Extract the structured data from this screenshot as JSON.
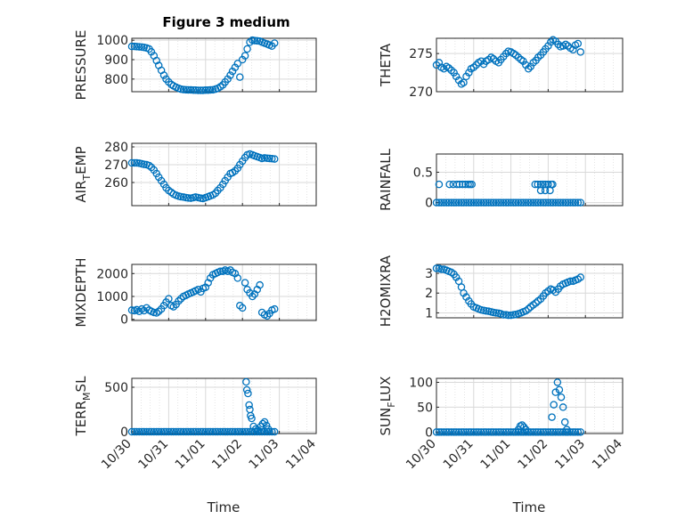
{
  "figure": {
    "title": "Figure 3 medium",
    "xlabel": "Time"
  },
  "colors": {
    "marker": "#0072BD",
    "axis": "#262626",
    "grid": "#d9d9d9"
  },
  "time_ticks": [
    "10/30",
    "10/31",
    "11/01",
    "11/02",
    "11/03",
    "11/04"
  ],
  "chart_data": [
    {
      "type": "scatter",
      "ylabel": "PRESSURE",
      "ylim": [
        735,
        1010
      ],
      "yticks": [
        "800",
        "900",
        "1000"
      ],
      "ytick_values": [
        800,
        900,
        1000
      ],
      "x": [
        0.0,
        0.07,
        0.13,
        0.2,
        0.27,
        0.33,
        0.4,
        0.47,
        0.53,
        0.6,
        0.67,
        0.73,
        0.8,
        0.87,
        0.93,
        1.0,
        1.07,
        1.13,
        1.2,
        1.27,
        1.33,
        1.4,
        1.47,
        1.53,
        1.6,
        1.67,
        1.73,
        1.8,
        1.87,
        1.93,
        2.0,
        2.07,
        2.13,
        2.2,
        2.27,
        2.33,
        2.4,
        2.47,
        2.53,
        2.6,
        2.67,
        2.73,
        2.8,
        2.87,
        2.93,
        3.0,
        3.07,
        3.13,
        3.2,
        3.27,
        3.33,
        3.4,
        3.47,
        3.53,
        3.6,
        3.67,
        3.73,
        3.8,
        3.87
      ],
      "y": [
        968,
        968,
        967,
        966,
        965,
        963,
        960,
        955,
        940,
        920,
        895,
        870,
        845,
        820,
        800,
        785,
        772,
        765,
        758,
        752,
        748,
        746,
        745,
        744,
        744,
        743,
        743,
        742,
        742,
        742,
        743,
        743,
        744,
        745,
        748,
        752,
        760,
        770,
        785,
        800,
        820,
        840,
        860,
        880,
        810,
        900,
        920,
        955,
        990,
        1000,
        998,
        997,
        995,
        990,
        985,
        980,
        975,
        970,
        985
      ]
    },
    {
      "type": "scatter",
      "ylabel": "THETA",
      "ylim": [
        270,
        277
      ],
      "yticks": [
        "270",
        "275"
      ],
      "ytick_values": [
        270,
        275
      ],
      "x": [
        0.0,
        0.07,
        0.13,
        0.2,
        0.27,
        0.33,
        0.4,
        0.47,
        0.53,
        0.6,
        0.67,
        0.73,
        0.8,
        0.87,
        0.93,
        1.0,
        1.07,
        1.13,
        1.2,
        1.27,
        1.33,
        1.4,
        1.47,
        1.53,
        1.6,
        1.67,
        1.73,
        1.8,
        1.87,
        1.93,
        2.0,
        2.07,
        2.13,
        2.2,
        2.27,
        2.33,
        2.4,
        2.47,
        2.53,
        2.6,
        2.67,
        2.73,
        2.8,
        2.87,
        2.93,
        3.0,
        3.07,
        3.13,
        3.2,
        3.27,
        3.33,
        3.4,
        3.47,
        3.53,
        3.6,
        3.67,
        3.73,
        3.8,
        3.87
      ],
      "y": [
        273.5,
        273.8,
        273.2,
        273.0,
        273.3,
        273.1,
        272.8,
        272.5,
        272.0,
        271.5,
        271.0,
        271.2,
        272.0,
        272.5,
        273.0,
        273.2,
        273.5,
        273.8,
        274.0,
        273.6,
        274.0,
        274.2,
        274.5,
        274.3,
        274.0,
        273.8,
        274.2,
        274.6,
        275.0,
        275.3,
        275.2,
        275.0,
        274.8,
        274.5,
        274.2,
        274.0,
        273.5,
        273.0,
        273.3,
        273.8,
        274.1,
        274.5,
        274.8,
        275.2,
        275.6,
        276.0,
        276.5,
        276.8,
        276.6,
        276.2,
        275.9,
        276.0,
        276.2,
        276.0,
        275.7,
        275.5,
        276.1,
        276.3,
        275.2
      ]
    },
    {
      "type": "scatter",
      "ylabel": "AIR_TEMP",
      "ylabel_main": "AIR",
      "ylabel_sub": "T",
      "ylabel_rest": "EMP",
      "ylim": [
        247,
        282
      ],
      "yticks": [
        "260",
        "270",
        "280"
      ],
      "ytick_values": [
        260,
        270,
        280
      ],
      "x": [
        0.0,
        0.07,
        0.13,
        0.2,
        0.27,
        0.33,
        0.4,
        0.47,
        0.53,
        0.6,
        0.67,
        0.73,
        0.8,
        0.87,
        0.93,
        1.0,
        1.07,
        1.13,
        1.2,
        1.27,
        1.33,
        1.4,
        1.47,
        1.53,
        1.6,
        1.67,
        1.73,
        1.8,
        1.87,
        1.93,
        2.0,
        2.07,
        2.13,
        2.2,
        2.27,
        2.33,
        2.4,
        2.47,
        2.53,
        2.6,
        2.67,
        2.73,
        2.8,
        2.87,
        2.93,
        3.0,
        3.07,
        3.13,
        3.2,
        3.27,
        3.33,
        3.4,
        3.47,
        3.53,
        3.6,
        3.67,
        3.73,
        3.8,
        3.87
      ],
      "y": [
        271,
        271,
        271,
        270.8,
        270.5,
        270.2,
        270,
        269.5,
        268.5,
        267,
        265,
        263,
        261,
        259,
        257,
        255.5,
        254.5,
        253.5,
        252.8,
        252.3,
        252,
        251.8,
        251.5,
        251.3,
        251.2,
        251.5,
        251.8,
        251.5,
        251.2,
        251,
        251.5,
        252,
        252.5,
        253,
        254,
        255.5,
        257,
        259,
        261,
        263,
        265,
        265.5,
        266.5,
        268,
        270,
        272,
        274,
        275.5,
        276,
        275.5,
        275,
        274.5,
        274,
        273.5,
        273.8,
        273.6,
        273.5,
        273.4,
        273.2
      ]
    },
    {
      "type": "scatter",
      "ylabel": "RAINFALL",
      "ylim": [
        -0.05,
        0.8
      ],
      "yticks": [
        "0",
        "0.5"
      ],
      "ytick_values": [
        0,
        0.5
      ],
      "x": [
        0.0,
        0.07,
        0.13,
        0.2,
        0.27,
        0.33,
        0.4,
        0.47,
        0.53,
        0.6,
        0.67,
        0.73,
        0.8,
        0.87,
        0.93,
        1.0,
        1.07,
        1.13,
        1.2,
        1.27,
        1.33,
        1.4,
        1.47,
        1.53,
        1.6,
        1.67,
        1.73,
        1.8,
        1.87,
        1.93,
        2.0,
        2.07,
        2.13,
        2.2,
        2.27,
        2.33,
        2.4,
        2.47,
        2.53,
        2.6,
        2.67,
        2.73,
        2.8,
        2.87,
        2.93,
        3.0,
        3.07,
        3.13,
        3.2,
        3.27,
        3.33,
        3.4,
        3.47,
        3.53,
        3.6,
        3.67,
        3.73,
        3.8,
        3.87,
        0.07,
        0.35,
        0.45,
        0.55,
        0.62,
        0.7,
        0.78,
        0.85,
        0.9,
        0.95,
        2.65,
        2.72,
        2.8,
        2.86,
        2.92,
        3.0,
        3.08,
        2.8,
        2.92,
        3.05,
        3.12
      ],
      "y": [
        0,
        0,
        0,
        0,
        0,
        0,
        0,
        0,
        0,
        0,
        0,
        0,
        0,
        0,
        0,
        0,
        0,
        0,
        0,
        0,
        0,
        0,
        0,
        0,
        0,
        0,
        0,
        0,
        0,
        0,
        0,
        0,
        0,
        0,
        0,
        0,
        0,
        0,
        0,
        0,
        0,
        0,
        0,
        0,
        0,
        0,
        0,
        0,
        0,
        0,
        0,
        0,
        0,
        0,
        0,
        0,
        0,
        0,
        0,
        0.3,
        0.3,
        0.3,
        0.3,
        0.3,
        0.3,
        0.3,
        0.3,
        0.3,
        0.3,
        0.3,
        0.3,
        0.3,
        0.3,
        0.3,
        0.3,
        0.3,
        0.2,
        0.2,
        0.2,
        0.3
      ]
    },
    {
      "type": "scatter",
      "ylabel": "MIXDEPTH",
      "ylim": [
        -50,
        2400
      ],
      "yticks": [
        "0",
        "1000",
        "2000"
      ],
      "ytick_values": [
        0,
        1000,
        2000
      ],
      "x": [
        0.0,
        0.07,
        0.13,
        0.2,
        0.27,
        0.33,
        0.4,
        0.47,
        0.53,
        0.6,
        0.67,
        0.73,
        0.8,
        0.87,
        0.93,
        1.0,
        1.07,
        1.13,
        1.2,
        1.27,
        1.33,
        1.4,
        1.47,
        1.53,
        1.6,
        1.67,
        1.73,
        1.8,
        1.87,
        1.93,
        2.0,
        2.07,
        2.13,
        2.2,
        2.27,
        2.33,
        2.4,
        2.47,
        2.53,
        2.6,
        2.67,
        2.73,
        2.8,
        2.87,
        2.93,
        3.0,
        3.07,
        3.13,
        3.2,
        3.27,
        3.33,
        3.4,
        3.47,
        3.53,
        3.6,
        3.67,
        3.73,
        3.8,
        3.87
      ],
      "y": [
        400,
        380,
        420,
        350,
        450,
        380,
        500,
        400,
        350,
        300,
        280,
        350,
        450,
        600,
        750,
        900,
        600,
        550,
        650,
        800,
        900,
        1000,
        1050,
        1100,
        1150,
        1200,
        1250,
        1300,
        1200,
        1350,
        1400,
        1600,
        1800,
        1950,
        2000,
        2050,
        2100,
        2100,
        2150,
        2100,
        2150,
        2050,
        2000,
        1800,
        600,
        500,
        1600,
        1300,
        1150,
        1000,
        1100,
        1300,
        1500,
        300,
        200,
        150,
        250,
        400,
        450
      ]
    },
    {
      "type": "scatter",
      "ylabel": "H2OMIXRA",
      "ylim": [
        0.75,
        3.45
      ],
      "yticks": [
        "1",
        "2",
        "3"
      ],
      "ytick_values": [
        1,
        2,
        3
      ],
      "x": [
        0.0,
        0.07,
        0.13,
        0.2,
        0.27,
        0.33,
        0.4,
        0.47,
        0.53,
        0.6,
        0.67,
        0.73,
        0.8,
        0.87,
        0.93,
        1.0,
        1.07,
        1.13,
        1.2,
        1.27,
        1.33,
        1.4,
        1.47,
        1.53,
        1.6,
        1.67,
        1.73,
        1.8,
        1.87,
        1.93,
        2.0,
        2.07,
        2.13,
        2.2,
        2.27,
        2.33,
        2.4,
        2.47,
        2.53,
        2.6,
        2.67,
        2.73,
        2.8,
        2.87,
        2.93,
        3.0,
        3.07,
        3.13,
        3.2,
        3.27,
        3.33,
        3.4,
        3.47,
        3.53,
        3.6,
        3.67,
        3.73,
        3.8,
        3.87
      ],
      "y": [
        3.25,
        3.25,
        3.2,
        3.2,
        3.15,
        3.1,
        3.05,
        2.95,
        2.8,
        2.6,
        2.3,
        2.0,
        1.8,
        1.6,
        1.45,
        1.3,
        1.25,
        1.2,
        1.15,
        1.12,
        1.1,
        1.08,
        1.05,
        1.02,
        1.0,
        0.98,
        0.95,
        0.9,
        0.9,
        0.88,
        0.88,
        0.9,
        0.92,
        0.95,
        1.0,
        1.05,
        1.1,
        1.2,
        1.3,
        1.4,
        1.5,
        1.6,
        1.7,
        1.85,
        2.0,
        2.1,
        2.2,
        2.15,
        2.05,
        2.2,
        2.35,
        2.45,
        2.5,
        2.55,
        2.6,
        2.6,
        2.65,
        2.7,
        2.8
      ]
    },
    {
      "type": "scatter",
      "ylabel": "TERR_MSL",
      "ylabel_main": "TERR",
      "ylabel_sub": "M",
      "ylabel_rest": "SL",
      "ylim": [
        -20,
        600
      ],
      "yticks": [
        "0",
        "500"
      ],
      "ytick_values": [
        0,
        500
      ],
      "x": [
        0.0,
        0.07,
        0.13,
        0.2,
        0.27,
        0.33,
        0.4,
        0.47,
        0.53,
        0.6,
        0.67,
        0.73,
        0.8,
        0.87,
        0.93,
        1.0,
        1.07,
        1.13,
        1.2,
        1.27,
        1.33,
        1.4,
        1.47,
        1.53,
        1.6,
        1.67,
        1.73,
        1.8,
        1.87,
        1.93,
        2.0,
        2.07,
        2.13,
        2.2,
        2.27,
        2.33,
        2.4,
        2.47,
        2.53,
        2.6,
        2.67,
        2.73,
        2.8,
        2.87,
        2.93,
        3.0,
        3.07,
        3.13,
        3.2,
        3.27,
        3.33,
        3.4,
        3.47,
        3.53,
        3.6,
        3.67,
        3.73,
        3.8,
        3.87,
        3.1,
        3.12,
        3.15,
        3.18,
        3.2,
        3.22,
        3.25,
        3.3,
        3.36,
        3.42,
        3.5,
        3.55,
        3.6,
        3.65,
        3.7
      ],
      "y": [
        0,
        0,
        0,
        0,
        0,
        0,
        0,
        0,
        0,
        0,
        0,
        0,
        0,
        0,
        0,
        0,
        0,
        0,
        0,
        0,
        0,
        0,
        0,
        0,
        0,
        0,
        0,
        0,
        0,
        0,
        0,
        0,
        0,
        0,
        0,
        0,
        0,
        0,
        0,
        0,
        0,
        0,
        0,
        0,
        0,
        0,
        0,
        0,
        0,
        0,
        0,
        0,
        0,
        0,
        0,
        0,
        0,
        0,
        0,
        560,
        470,
        430,
        300,
        250,
        180,
        150,
        60,
        30,
        20,
        60,
        90,
        110,
        70,
        30
      ]
    },
    {
      "type": "scatter",
      "ylabel": "SUN_FLUX",
      "ylabel_main": "SUN",
      "ylabel_sub": "F",
      "ylabel_rest": "LUX",
      "ylim": [
        -3,
        108
      ],
      "yticks": [
        "0",
        "50",
        "100"
      ],
      "ytick_values": [
        0,
        50,
        100
      ],
      "x": [
        0.0,
        0.07,
        0.13,
        0.2,
        0.27,
        0.33,
        0.4,
        0.47,
        0.53,
        0.6,
        0.67,
        0.73,
        0.8,
        0.87,
        0.93,
        1.0,
        1.07,
        1.13,
        1.2,
        1.27,
        1.33,
        1.4,
        1.47,
        1.53,
        1.6,
        1.67,
        1.73,
        1.8,
        1.87,
        1.93,
        2.0,
        2.07,
        2.13,
        2.2,
        2.27,
        2.33,
        2.4,
        2.47,
        2.53,
        2.6,
        2.67,
        2.73,
        2.8,
        2.87,
        2.93,
        3.0,
        3.07,
        3.13,
        3.2,
        3.27,
        3.33,
        3.4,
        3.47,
        3.53,
        3.6,
        3.67,
        3.73,
        3.8,
        3.87,
        2.2,
        2.25,
        2.3,
        2.35,
        2.4,
        3.1,
        3.15,
        3.2,
        3.25,
        3.3,
        3.35,
        3.4,
        3.45,
        3.5
      ],
      "y": [
        0,
        0,
        0,
        0,
        0,
        0,
        0,
        0,
        0,
        0,
        0,
        0,
        0,
        0,
        0,
        0,
        0,
        0,
        0,
        0,
        0,
        0,
        0,
        0,
        0,
        0,
        0,
        0,
        0,
        0,
        0,
        0,
        0,
        0,
        0,
        0,
        0,
        0,
        0,
        0,
        0,
        0,
        0,
        0,
        0,
        0,
        0,
        0,
        0,
        0,
        0,
        0,
        0,
        0,
        0,
        0,
        0,
        0,
        0,
        5,
        12,
        14,
        10,
        5,
        30,
        55,
        80,
        100,
        85,
        70,
        50,
        20,
        5
      ]
    }
  ]
}
